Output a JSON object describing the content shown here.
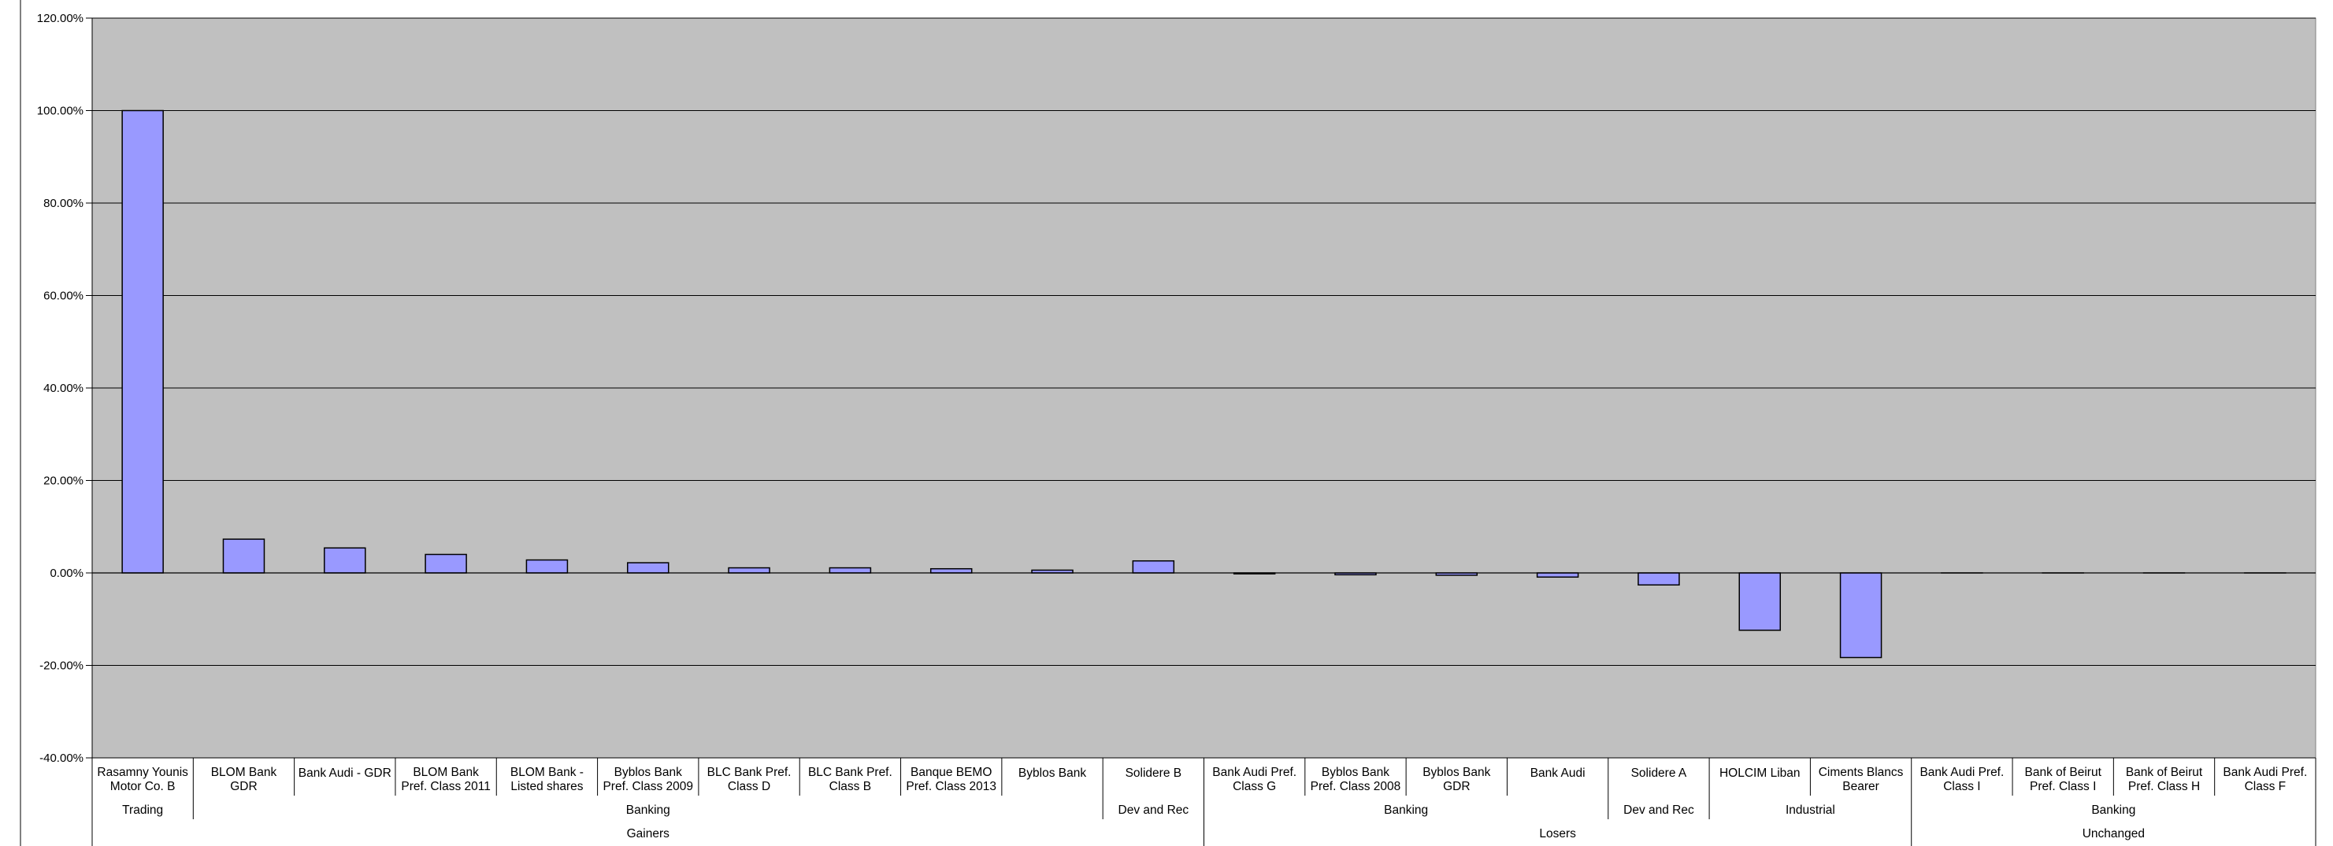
{
  "chart_data": {
    "type": "bar",
    "ylim": [
      -0.4,
      1.2
    ],
    "yticks": [
      1.2,
      1.0,
      0.8,
      0.6,
      0.4,
      0.2,
      0.0,
      -0.2,
      -0.4
    ],
    "ytick_labels": [
      "120.00%",
      "100.00%",
      "80.00%",
      "60.00%",
      "40.00%",
      "20.00%",
      "0.00%",
      "-20.00%",
      "-40.00%"
    ],
    "grid": true,
    "legend": "none",
    "categories": [
      [
        "Rasamny Younis",
        "Motor Co. B"
      ],
      [
        "BLOM Bank",
        "GDR"
      ],
      [
        "Bank Audi - GDR"
      ],
      [
        "BLOM Bank",
        "Pref. Class 2011"
      ],
      [
        "BLOM Bank -",
        "Listed shares"
      ],
      [
        "Byblos Bank",
        "Pref. Class 2009"
      ],
      [
        "BLC Bank Pref.",
        "Class D"
      ],
      [
        "BLC Bank Pref.",
        "Class B"
      ],
      [
        "Banque BEMO",
        "Pref. Class 2013"
      ],
      [
        "Byblos Bank"
      ],
      [
        "Solidere B"
      ],
      [
        "Bank Audi Pref.",
        "Class G"
      ],
      [
        "Byblos Bank",
        "Pref. Class 2008"
      ],
      [
        "Byblos Bank",
        "GDR"
      ],
      [
        "Bank Audi"
      ],
      [
        "Solidere A"
      ],
      [
        "HOLCIM Liban"
      ],
      [
        "Ciments Blancs",
        "Bearer"
      ],
      [
        "Bank Audi Pref.",
        "Class I"
      ],
      [
        "Bank of Beirut",
        "Pref. Class I"
      ],
      [
        "Bank of Beirut",
        "Pref. Class H"
      ],
      [
        "Bank Audi Pref.",
        "Class F"
      ]
    ],
    "values": [
      1.0,
      0.073,
      0.054,
      0.04,
      0.028,
      0.022,
      0.011,
      0.011,
      0.009,
      0.006,
      0.026,
      -0.002,
      -0.004,
      -0.005,
      -0.009,
      -0.026,
      -0.124,
      -0.183,
      0,
      0,
      0,
      0
    ],
    "sector_groups": [
      {
        "label": "Trading",
        "start": 0,
        "end": 0
      },
      {
        "label": "Banking",
        "start": 1,
        "end": 9
      },
      {
        "label": "Dev and Rec",
        "start": 10,
        "end": 10
      },
      {
        "label": "Banking",
        "start": 11,
        "end": 14
      },
      {
        "label": "Dev and Rec",
        "start": 15,
        "end": 15
      },
      {
        "label": "Industrial",
        "start": 16,
        "end": 17
      },
      {
        "label": "Banking",
        "start": 18,
        "end": 21
      }
    ],
    "outcome_groups": [
      {
        "label": "Gainers",
        "start": 0,
        "end": 10
      },
      {
        "label": "Losers",
        "start": 11,
        "end": 17
      },
      {
        "label": "Unchanged",
        "start": 18,
        "end": 21
      }
    ],
    "colors": {
      "plot_background": "#c0c0c0",
      "bar_fill": "#9999ff",
      "bar_stroke": "#000000",
      "grid": "#000000"
    }
  }
}
